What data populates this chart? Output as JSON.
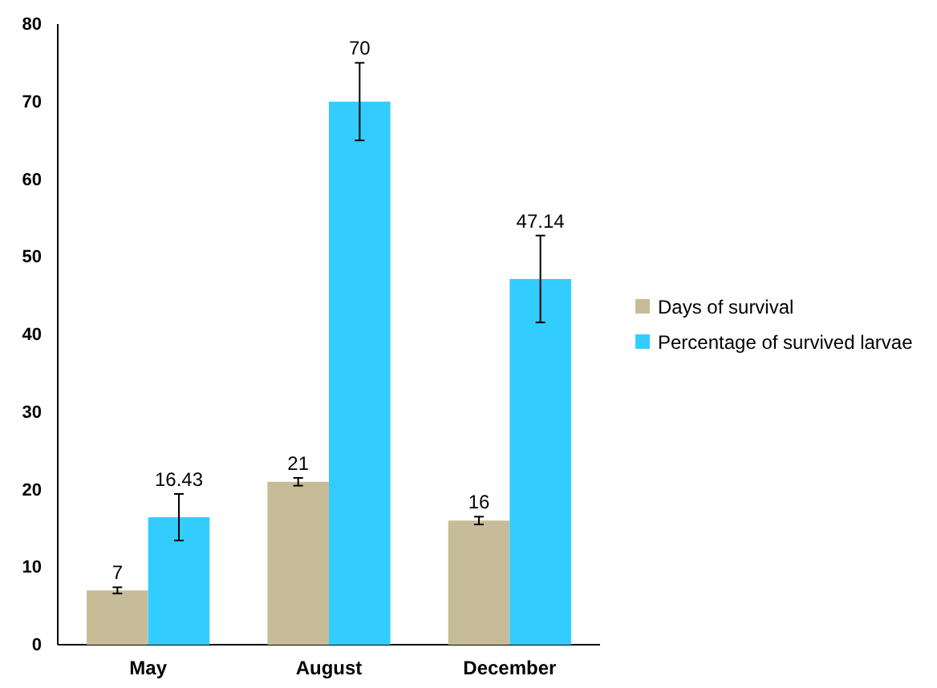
{
  "chart_data": {
    "type": "bar",
    "categories": [
      "May",
      "August",
      "December"
    ],
    "series": [
      {
        "name": "Days of survival",
        "color": "#c6bd98",
        "values": [
          7,
          21,
          16
        ],
        "errors": [
          0.4,
          0.5,
          0.5
        ]
      },
      {
        "name": "Percentage of survived larvae",
        "color": "#33ccff",
        "values": [
          16.43,
          70,
          47.14
        ],
        "errors": [
          3,
          5,
          5.6
        ]
      }
    ],
    "ylim": [
      0,
      80
    ],
    "yticks": [
      0,
      10,
      20,
      30,
      40,
      50,
      60,
      70,
      80
    ],
    "data_labels": true,
    "legend": "right",
    "grid": false
  }
}
